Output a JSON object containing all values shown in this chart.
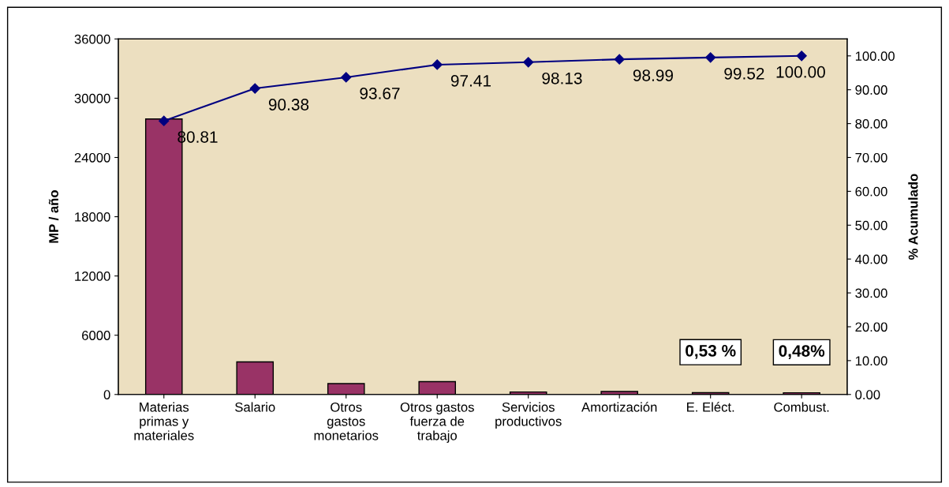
{
  "chart_data": {
    "type": "bar",
    "ylabel": "MP / año",
    "y2label": "% Acumulado",
    "categories": [
      "Materias\nprimas y\nmateriales",
      "Salario",
      "Otros\ngastos\nmonetarios",
      "Otros gastos\nfuerza de\ntrabajo",
      "Servicios\nproductivos",
      "Amortización",
      "E. Eléct.",
      "Combust."
    ],
    "series": [
      {
        "color": "#993366",
        "values": [
          27900,
          3300,
          1100,
          1300,
          250,
          300,
          180,
          170
        ]
      },
      {
        "type": "line",
        "axis": "y2",
        "color": "#000080",
        "marker": "diamond",
        "values": [
          80.81,
          90.38,
          93.67,
          97.41,
          98.13,
          98.99,
          99.52,
          100.0
        ],
        "value_labels": [
          "80.81",
          "90.38",
          "93.67",
          "97.41",
          "98.13",
          "98.99",
          "99.52",
          "100.00"
        ]
      }
    ],
    "ylim": [
      0,
      36000
    ],
    "yticks": [
      0,
      6000,
      12000,
      18000,
      24000,
      30000,
      36000
    ],
    "y2lim": [
      0,
      105
    ],
    "y2ticks": [
      {
        "value": 0,
        "label": "0.00"
      },
      {
        "value": 10,
        "label": "10.00"
      },
      {
        "value": 20,
        "label": "20.00"
      },
      {
        "value": 30,
        "label": "30.00"
      },
      {
        "value": 40,
        "label": "40.00"
      },
      {
        "value": 50,
        "label": "50.00"
      },
      {
        "value": 60,
        "label": "60.00"
      },
      {
        "value": 70,
        "label": "70.00"
      },
      {
        "value": 80,
        "label": "80.00"
      },
      {
        "value": 90,
        "label": "90.00"
      },
      {
        "value": 100,
        "label": "100.00"
      }
    ],
    "annotations": [
      {
        "text": "0,53 %",
        "x": "E. Eléct.",
        "y": 180
      },
      {
        "text": "0,48%",
        "x": "Combust.",
        "y": 165
      }
    ],
    "grid": false
  }
}
